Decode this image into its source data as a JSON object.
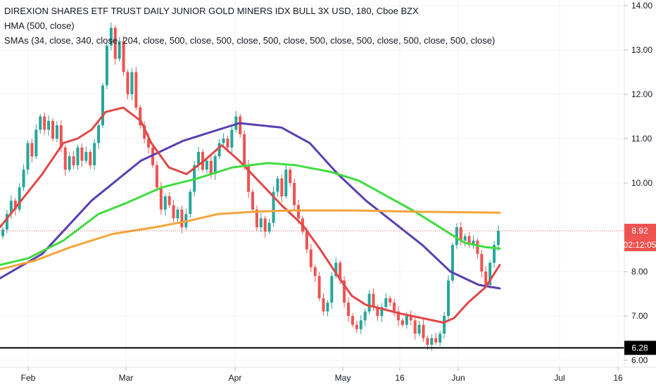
{
  "legend": {
    "title": "DIREXION SHARES ETF TRUST DAILY JUNIOR GOLD MINERS IDX BULL 3X USD, 180, Cboe BZX",
    "hma": "HMA (500, close)",
    "smas": "SMAs (34, close, 340, close, 204, close, 500, close, 500, close, 500, close, 500, close, 500, close, 500, close, 500, close)"
  },
  "chart_data": {
    "type": "candlestick",
    "y_ticks": [
      "14.00",
      "13.00",
      "12.00",
      "11.00",
      "10.00",
      "9.00",
      "8.00",
      "7.00",
      "6.00"
    ],
    "x_ticks": [
      "Feb",
      "Mar",
      "Apr",
      "May",
      "16",
      "Jun",
      "Jul",
      "16"
    ],
    "ylim": [
      5.85,
      14.1
    ],
    "last_price": "8.92",
    "countdown": "02:12:05",
    "horizontal_line": "6.28",
    "colors": {
      "up": "#26a69a",
      "down": "#ef5350",
      "hma": "#5b3fb0",
      "sma_fast": "#e04848",
      "sma_mid": "#3fdc3f",
      "sma_slow": "#f4a53c",
      "price_badge": "#ef5350",
      "hline": "#000000"
    },
    "candles": [
      [
        8.8,
        8.95
      ],
      [
        8.95,
        9.3
      ],
      [
        9.3,
        9.6
      ],
      [
        9.6,
        9.4
      ],
      [
        9.4,
        9.9
      ],
      [
        9.9,
        10.3
      ],
      [
        10.3,
        10.9
      ],
      [
        10.9,
        10.6
      ],
      [
        10.6,
        11.2
      ],
      [
        11.2,
        11.5
      ],
      [
        11.5,
        11.2
      ],
      [
        11.2,
        11.4
      ],
      [
        11.4,
        11.0
      ],
      [
        11.0,
        11.3
      ],
      [
        11.3,
        10.8
      ],
      [
        10.8,
        10.3
      ],
      [
        10.3,
        10.6
      ],
      [
        10.6,
        10.4
      ],
      [
        10.4,
        10.8
      ],
      [
        10.8,
        10.5
      ],
      [
        10.5,
        10.7
      ],
      [
        10.7,
        10.4
      ],
      [
        10.4,
        10.9
      ],
      [
        10.9,
        11.3
      ],
      [
        11.3,
        12.2
      ],
      [
        12.2,
        13.1
      ],
      [
        13.1,
        13.5
      ],
      [
        13.5,
        12.8
      ],
      [
        12.8,
        13.2
      ],
      [
        13.2,
        12.5
      ],
      [
        12.5,
        12.0
      ],
      [
        12.0,
        12.5
      ],
      [
        12.5,
        11.7
      ],
      [
        11.7,
        11.3
      ],
      [
        11.3,
        11.0
      ],
      [
        11.0,
        10.8
      ],
      [
        10.8,
        10.4
      ],
      [
        10.4,
        9.9
      ],
      [
        9.9,
        9.4
      ],
      [
        9.4,
        9.7
      ],
      [
        9.7,
        9.5
      ],
      [
        9.5,
        9.2
      ],
      [
        9.2,
        9.4
      ],
      [
        9.4,
        9.0
      ],
      [
        9.0,
        9.3
      ],
      [
        9.3,
        9.8
      ],
      [
        9.8,
        10.4
      ],
      [
        10.4,
        10.7
      ],
      [
        10.7,
        10.3
      ],
      [
        10.3,
        10.5
      ],
      [
        10.5,
        10.2
      ],
      [
        10.2,
        10.6
      ],
      [
        10.6,
        10.9
      ],
      [
        10.9,
        11.0
      ],
      [
        11.0,
        10.8
      ],
      [
        10.8,
        11.2
      ],
      [
        11.2,
        11.5
      ],
      [
        11.5,
        11.1
      ],
      [
        11.1,
        10.4
      ],
      [
        10.4,
        9.8
      ],
      [
        9.8,
        9.4
      ],
      [
        9.4,
        9.0
      ],
      [
        9.0,
        9.2
      ],
      [
        9.2,
        8.9
      ],
      [
        8.9,
        9.1
      ],
      [
        9.1,
        9.8
      ],
      [
        9.8,
        10.1
      ],
      [
        10.1,
        9.7
      ],
      [
        9.7,
        10.3
      ],
      [
        10.3,
        10.0
      ],
      [
        10.0,
        9.5
      ],
      [
        9.5,
        9.2
      ],
      [
        9.2,
        8.9
      ],
      [
        8.9,
        8.5
      ],
      [
        8.5,
        8.1
      ],
      [
        8.1,
        7.9
      ],
      [
        7.9,
        7.4
      ],
      [
        7.4,
        7.1
      ],
      [
        7.1,
        7.3
      ],
      [
        7.3,
        7.9
      ],
      [
        7.9,
        8.2
      ],
      [
        8.2,
        7.8
      ],
      [
        7.8,
        7.3
      ],
      [
        7.3,
        7.0
      ],
      [
        7.0,
        6.8
      ],
      [
        6.8,
        6.7
      ],
      [
        6.7,
        6.9
      ],
      [
        6.9,
        7.1
      ],
      [
        7.1,
        7.5
      ],
      [
        7.5,
        7.2
      ],
      [
        7.2,
        7.0
      ],
      [
        7.0,
        7.2
      ],
      [
        7.2,
        7.4
      ],
      [
        7.4,
        7.3
      ],
      [
        7.3,
        7.1
      ],
      [
        7.1,
        6.9
      ],
      [
        6.9,
        6.8
      ],
      [
        6.8,
        7.0
      ],
      [
        7.0,
        6.9
      ],
      [
        6.9,
        6.6
      ],
      [
        6.6,
        6.8
      ],
      [
        6.8,
        6.5
      ],
      [
        6.5,
        6.35
      ],
      [
        6.35,
        6.5
      ],
      [
        6.5,
        6.4
      ],
      [
        6.4,
        6.6
      ],
      [
        6.6,
        7.0
      ],
      [
        7.0,
        7.8
      ],
      [
        7.8,
        8.6
      ],
      [
        8.6,
        9.0
      ],
      [
        9.0,
        8.7
      ],
      [
        8.7,
        8.8
      ],
      [
        8.8,
        8.6
      ],
      [
        8.6,
        8.7
      ],
      [
        8.7,
        8.4
      ],
      [
        8.4,
        8.0
      ],
      [
        8.0,
        7.7
      ],
      [
        7.7,
        8.2
      ],
      [
        8.2,
        8.6
      ],
      [
        8.6,
        8.92
      ]
    ],
    "series": [
      {
        "key": "hma",
        "values": [
          [
            0,
            7.85
          ],
          [
            60,
            8.4
          ],
          [
            130,
            9.6
          ],
          [
            200,
            10.5
          ],
          [
            260,
            10.95
          ],
          [
            310,
            11.2
          ],
          [
            340,
            11.35
          ],
          [
            400,
            11.25
          ],
          [
            440,
            10.9
          ],
          [
            480,
            10.2
          ],
          [
            520,
            9.6
          ],
          [
            560,
            9.1
          ],
          [
            600,
            8.6
          ],
          [
            640,
            8.0
          ],
          [
            680,
            7.7
          ],
          [
            710,
            7.62
          ]
        ]
      },
      {
        "key": "sma_fast",
        "values": [
          [
            0,
            9.0
          ],
          [
            30,
            9.6
          ],
          [
            60,
            10.2
          ],
          [
            90,
            10.9
          ],
          [
            110,
            11.0
          ],
          [
            130,
            11.2
          ],
          [
            150,
            11.6
          ],
          [
            175,
            11.7
          ],
          [
            200,
            11.4
          ],
          [
            215,
            10.9
          ],
          [
            240,
            10.35
          ],
          [
            265,
            10.2
          ],
          [
            290,
            10.5
          ],
          [
            315,
            10.85
          ],
          [
            340,
            10.5
          ],
          [
            370,
            10.0
          ],
          [
            400,
            9.5
          ],
          [
            430,
            9.05
          ],
          [
            455,
            8.5
          ],
          [
            480,
            7.9
          ],
          [
            500,
            7.45
          ],
          [
            520,
            7.25
          ],
          [
            545,
            7.15
          ],
          [
            570,
            7.05
          ],
          [
            600,
            6.95
          ],
          [
            630,
            6.85
          ],
          [
            645,
            6.95
          ],
          [
            665,
            7.3
          ],
          [
            690,
            7.65
          ],
          [
            710,
            8.15
          ]
        ]
      },
      {
        "key": "sma_mid",
        "values": [
          [
            0,
            8.15
          ],
          [
            40,
            8.3
          ],
          [
            90,
            8.7
          ],
          [
            140,
            9.3
          ],
          [
            180,
            9.55
          ],
          [
            230,
            9.9
          ],
          [
            280,
            10.1
          ],
          [
            330,
            10.35
          ],
          [
            380,
            10.45
          ],
          [
            420,
            10.4
          ],
          [
            470,
            10.25
          ],
          [
            510,
            10.05
          ],
          [
            550,
            9.7
          ],
          [
            590,
            9.35
          ],
          [
            630,
            8.95
          ],
          [
            660,
            8.65
          ],
          [
            690,
            8.55
          ],
          [
            710,
            8.52
          ]
        ]
      },
      {
        "key": "sma_slow",
        "values": [
          [
            0,
            8.05
          ],
          [
            50,
            8.25
          ],
          [
            100,
            8.55
          ],
          [
            160,
            8.85
          ],
          [
            220,
            9.0
          ],
          [
            270,
            9.15
          ],
          [
            310,
            9.3
          ],
          [
            360,
            9.35
          ],
          [
            410,
            9.38
          ],
          [
            500,
            9.38
          ],
          [
            600,
            9.35
          ],
          [
            710,
            9.33
          ]
        ]
      }
    ]
  }
}
